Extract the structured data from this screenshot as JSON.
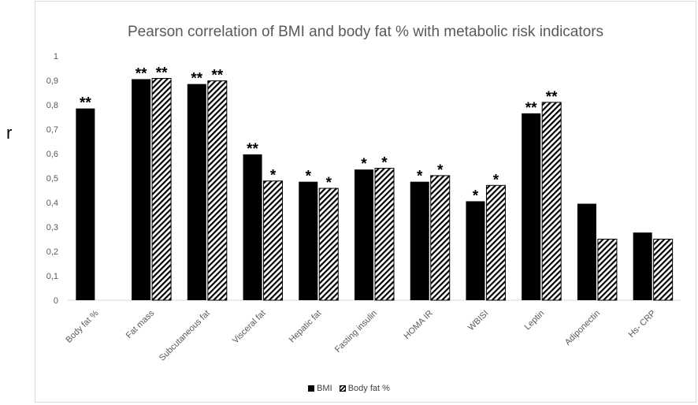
{
  "chart_data": {
    "type": "bar",
    "title": "Pearson correlation of BMI and body fat % with metabolic risk indicators",
    "ylabel": "r",
    "ylim": [
      0,
      1
    ],
    "yticks": [
      "0",
      "0,1",
      "0,2",
      "0,3",
      "0,4",
      "0,5",
      "0,6",
      "0,7",
      "0,8",
      "0,9",
      "1"
    ],
    "categories": [
      "Body fat %",
      "Fat mass",
      "Subcutaneous fat",
      "Visceral fat",
      "Hepatic fat",
      "Fasting insulin",
      "HOMA IR",
      "WBISI",
      "Leptin",
      "Adiponectin",
      "Hs- CRP"
    ],
    "series": [
      {
        "name": "BMI",
        "fill": "solid-black",
        "values": [
          0.785,
          0.905,
          0.885,
          0.597,
          0.485,
          0.535,
          0.485,
          0.405,
          0.765,
          0.395,
          0.277
        ],
        "annotations": [
          "**",
          "**",
          "**",
          "**",
          "*",
          "*",
          "*",
          "*",
          "**",
          "",
          ""
        ]
      },
      {
        "name": "Body fat %",
        "fill": "hatched",
        "values": [
          null,
          0.908,
          0.898,
          0.488,
          0.458,
          0.54,
          0.51,
          0.47,
          0.81,
          0.25,
          0.25
        ],
        "annotations": [
          "",
          "**",
          "**",
          "*",
          "*",
          "*",
          "*",
          "*",
          "**",
          "",
          ""
        ]
      }
    ],
    "grid": false,
    "legend_position": "bottom"
  },
  "colors": {
    "bar": "#000000",
    "axis": "#d9d9d9",
    "text": "#595959"
  }
}
